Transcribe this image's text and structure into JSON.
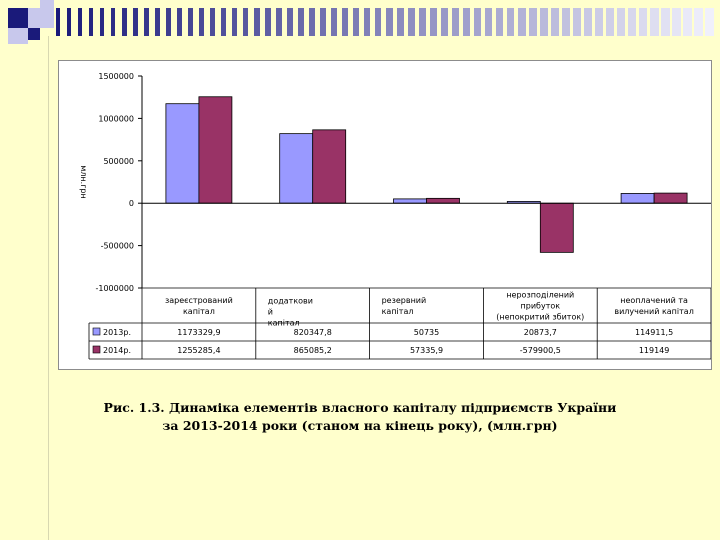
{
  "theme": {
    "background": "#FFFFCC",
    "deco_dark": "#1a1a7a",
    "deco_light": "#c8c8ec"
  },
  "chart_data": {
    "type": "bar",
    "title": "",
    "ylabel": "млн.грн",
    "xlabel": "",
    "ylim": [
      -1000000,
      1500000
    ],
    "yticks": [
      "1500000",
      "1000000",
      "500000",
      "0",
      "-500000",
      "-1000000"
    ],
    "categories": [
      [
        "зареєстрований",
        "капітал"
      ],
      [
        "додаткови",
        "й",
        "капітал"
      ],
      [
        "резервний",
        "капітал"
      ],
      [
        "нерозподілений",
        "прибуток",
        "(непокритий збиток)"
      ],
      [
        "неоплачений та",
        "вилучений капітал"
      ]
    ],
    "series": [
      {
        "name": "2013р.",
        "color": "#9999FF",
        "values": [
          1173329.9,
          820347.8,
          50735,
          20873.7,
          114911.5
        ],
        "labels": [
          "1173329,9",
          "820347,8",
          "50735",
          "20873,7",
          "114911,5"
        ]
      },
      {
        "name": "2014р.",
        "color": "#993366",
        "values": [
          1255285.4,
          865085.2,
          57335.9,
          -579900.5,
          119149
        ],
        "labels": [
          "1255285,4",
          "865085,2",
          "57335,9",
          "-579900,5",
          "119149"
        ]
      }
    ],
    "grid": true,
    "legend": "data-table"
  },
  "caption": {
    "line1": "Рис. 1.3. Динаміка елементів власного капіталу підприємств України",
    "line2": "за 2013-2014 роки (станом на кінець року), (млн.грн)"
  }
}
